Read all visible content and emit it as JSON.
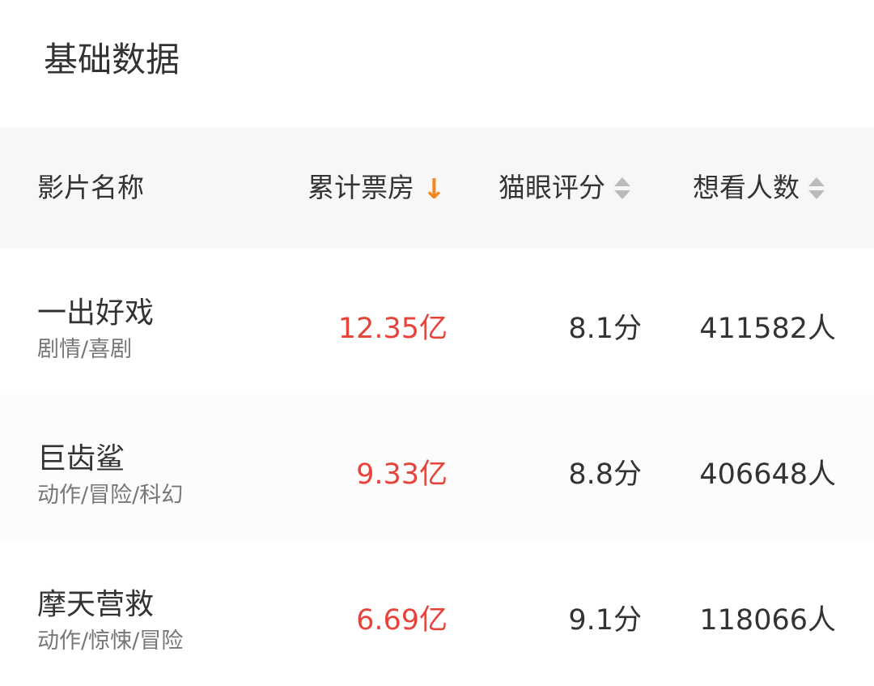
{
  "title": "基础数据",
  "header": {
    "name": "影片名称",
    "box_office": "累计票房",
    "score": "猫眼评分",
    "want": "想看人数",
    "active_sort": "box_office",
    "sort_direction": "descending",
    "sort_arrow": "↓",
    "accent_color": "#f7861c"
  },
  "rows": [
    {
      "name": "一出好戏",
      "genre": "剧情/喜剧",
      "box_office": "12.35亿",
      "score": "8.1分",
      "want": "411582人"
    },
    {
      "name": "巨齿鲨",
      "genre": "动作/冒险/科幻",
      "box_office": "9.33亿",
      "score": "8.8分",
      "want": "406648人"
    },
    {
      "name": "摩天营救",
      "genre": "动作/惊悚/冒险",
      "box_office": "6.69亿",
      "score": "9.1分",
      "want": "118066人"
    }
  ],
  "colors": {
    "box_office": "#e8433b"
  }
}
